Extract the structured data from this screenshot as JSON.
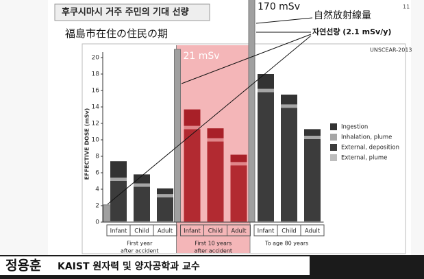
{
  "header": {
    "title": "후쿠시마시 거주 주민의 기대 선량",
    "page_number": "11",
    "subtitle": "福島市在住の住民の期",
    "note_jp": "自然放射線量",
    "note_kr": "자연선량 (2.1 mSv/y)"
  },
  "chart_data": {
    "type": "bar",
    "stacked": true,
    "source": "UNSCEAR-2013",
    "y_label": "EFFECTIVE DOSE (mSv)",
    "categories": [
      "Infant",
      "Child",
      "Adult",
      "Infant",
      "Child",
      "Adult",
      "Infant",
      "Child",
      "Adult"
    ],
    "groups": [
      {
        "lines": [
          "First year",
          "after accident"
        ]
      },
      {
        "lines": [
          "First 10 years",
          "after accident"
        ]
      },
      {
        "lines": [
          "To age 80 years"
        ]
      }
    ],
    "highlight_group": 1,
    "highlight_color": "#f4b6b8",
    "series": [
      {
        "name": "Ingestion",
        "color": "#333333",
        "highlight_color": "#a82028",
        "values": [
          2.0,
          1.1,
          0.7,
          2.0,
          1.2,
          0.9,
          1.8,
          1.2,
          0.8
        ]
      },
      {
        "name": "Inhalation, plume",
        "color": "#a6a6a6",
        "highlight_color": "#e0868a",
        "values": [
          0.4,
          0.4,
          0.4,
          0.4,
          0.4,
          0.4,
          0.4,
          0.4,
          0.4
        ]
      },
      {
        "name": "External, deposition",
        "color": "#3c3c3c",
        "highlight_color": "#b22a31",
        "values": [
          4.9,
          4.2,
          2.9,
          11.2,
          9.7,
          6.8,
          15.7,
          13.8,
          10.0
        ]
      },
      {
        "name": "External, plume",
        "color": "#bdbdbd",
        "highlight_color": "#c84a50",
        "values": [
          0.1,
          0.1,
          0.1,
          0.1,
          0.1,
          0.1,
          0.1,
          0.1,
          0.1
        ]
      }
    ],
    "natural": {
      "color": "#a0a0a0",
      "values": [
        2.1,
        21,
        170
      ],
      "value_labels": [
        null,
        "21 mSv",
        "170 mSv"
      ]
    },
    "ylim": [
      0,
      20
    ],
    "yticks": [
      0,
      2,
      4,
      6,
      8,
      10,
      12,
      14,
      16,
      18,
      20
    ]
  },
  "caption": {
    "name": "정용훈",
    "affiliation": "KAIST 원자력 및 양자공학과 교수"
  }
}
